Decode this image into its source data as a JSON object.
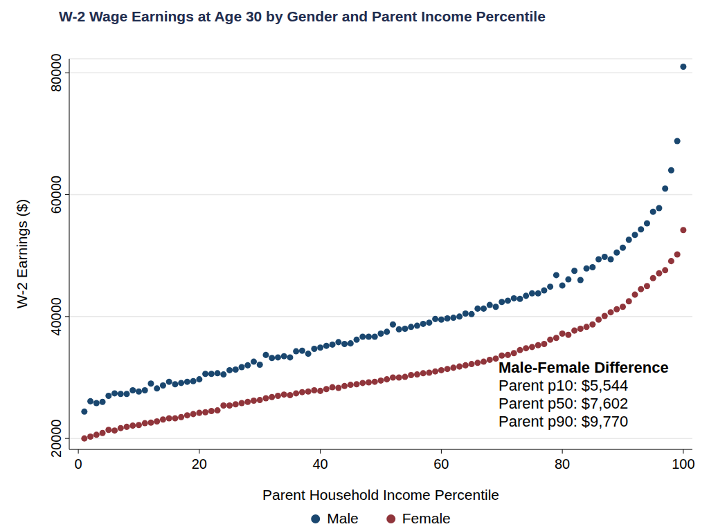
{
  "chart_data": {
    "type": "scatter",
    "title": "W-2 Wage Earnings at Age 30 by Gender and Parent Income Percentile",
    "x_label": "Parent Household Income Percentile",
    "y_label": "W-2 Earnings ($)",
    "x": [
      1,
      2,
      3,
      4,
      5,
      6,
      7,
      8,
      9,
      10,
      11,
      12,
      13,
      14,
      15,
      16,
      17,
      18,
      19,
      20,
      21,
      22,
      23,
      24,
      25,
      26,
      27,
      28,
      29,
      30,
      31,
      32,
      33,
      34,
      35,
      36,
      37,
      38,
      39,
      40,
      41,
      42,
      43,
      44,
      45,
      46,
      47,
      48,
      49,
      50,
      51,
      52,
      53,
      54,
      55,
      56,
      57,
      58,
      59,
      60,
      61,
      62,
      63,
      64,
      65,
      66,
      67,
      68,
      69,
      70,
      71,
      72,
      73,
      74,
      75,
      76,
      77,
      78,
      79,
      80,
      81,
      82,
      83,
      84,
      85,
      86,
      87,
      88,
      89,
      90,
      91,
      92,
      93,
      94,
      95,
      96,
      97,
      98,
      99,
      100
    ],
    "series": [
      {
        "name": "Male",
        "color": "#1a476f",
        "marker": "circle",
        "values": [
          24400,
          26100,
          25800,
          26000,
          27000,
          27400,
          27300,
          27300,
          27900,
          27700,
          27900,
          29000,
          28200,
          28700,
          29300,
          28900,
          29100,
          29300,
          29400,
          29700,
          30600,
          30600,
          30700,
          30500,
          31200,
          31300,
          31700,
          32000,
          32600,
          32100,
          33700,
          33200,
          33300,
          33500,
          33300,
          34300,
          34400,
          33900,
          34700,
          34900,
          35200,
          35400,
          35800,
          35500,
          35600,
          36200,
          36700,
          36700,
          36700,
          37200,
          37500,
          38700,
          37900,
          38000,
          38300,
          38500,
          38800,
          39000,
          39600,
          39500,
          39700,
          39800,
          40000,
          40500,
          40400,
          41300,
          41300,
          41900,
          41600,
          42400,
          42600,
          43000,
          42900,
          43400,
          43800,
          43800,
          44300,
          44900,
          46800,
          45100,
          46100,
          47500,
          46000,
          47900,
          48100,
          49400,
          49800,
          49400,
          50500,
          51300,
          52600,
          53400,
          54300,
          55300,
          57200,
          57800,
          61000,
          64000,
          68800,
          81000
        ]
      },
      {
        "name": "Female",
        "color": "#90353b",
        "marker": "circle",
        "values": [
          20000,
          20300,
          20600,
          20900,
          21400,
          21300,
          21700,
          21900,
          22100,
          22200,
          22500,
          22600,
          22800,
          23100,
          23300,
          23300,
          23500,
          23800,
          24000,
          24200,
          24300,
          24500,
          24600,
          25400,
          25400,
          25600,
          25800,
          26000,
          26200,
          26300,
          26600,
          26800,
          27000,
          27200,
          27100,
          27400,
          27600,
          27700,
          27900,
          27800,
          28100,
          28400,
          28300,
          28600,
          28800,
          28900,
          29100,
          29200,
          29300,
          29500,
          29700,
          30000,
          30000,
          30100,
          30400,
          30500,
          30700,
          30800,
          31000,
          31200,
          31400,
          31600,
          31800,
          32000,
          32200,
          32400,
          32600,
          32900,
          33100,
          33600,
          33700,
          34000,
          34500,
          34800,
          35000,
          35300,
          35500,
          36200,
          36500,
          37200,
          37000,
          37700,
          38000,
          38300,
          38700,
          39500,
          40100,
          40700,
          41200,
          41600,
          42500,
          43600,
          44500,
          45000,
          46300,
          47100,
          47600,
          49100,
          50200,
          54200
        ]
      }
    ],
    "xlim": [
      -1.5,
      101.5
    ],
    "xticks": [
      0,
      20,
      40,
      60,
      80,
      100
    ],
    "ylim": [
      18200,
      82300
    ],
    "yticks": [
      20000,
      40000,
      60000,
      80000
    ],
    "grid": true,
    "legend": "bottom",
    "annotation": {
      "title": "Male-Female Difference",
      "lines": [
        "Parent p10: $5,544",
        "Parent p50: $7,602",
        "Parent p90: $9,770"
      ]
    }
  }
}
